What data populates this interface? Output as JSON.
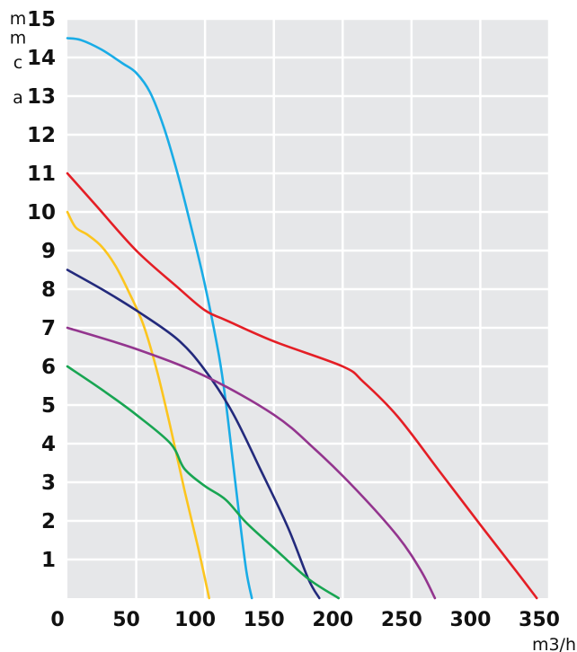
{
  "chart_data": {
    "type": "line",
    "title": "",
    "xlabel": "m3/h",
    "ylabel_letters": [
      "m",
      "m",
      "c",
      "a"
    ],
    "xlim": [
      0,
      350
    ],
    "ylim": [
      0,
      15
    ],
    "x_ticks": [
      0,
      50,
      100,
      150,
      200,
      250,
      300,
      350
    ],
    "y_ticks": [
      1,
      2,
      3,
      4,
      5,
      6,
      7,
      8,
      9,
      10,
      11,
      12,
      13,
      14,
      15
    ],
    "grid": true,
    "colors": {
      "plot_bg": "#e6e7e9",
      "grid": "#ffffff"
    },
    "series": [
      {
        "color": "#19ace6",
        "points": [
          [
            0,
            14.5
          ],
          [
            10,
            14.45
          ],
          [
            25,
            14.2
          ],
          [
            40,
            13.85
          ],
          [
            50,
            13.6
          ],
          [
            60,
            13.1
          ],
          [
            70,
            12.2
          ],
          [
            80,
            11.0
          ],
          [
            90,
            9.6
          ],
          [
            100,
            8.1
          ],
          [
            110,
            6.3
          ],
          [
            115,
            5.1
          ],
          [
            120,
            3.6
          ],
          [
            125,
            2.1
          ],
          [
            130,
            0.7
          ],
          [
            134,
            0
          ]
        ]
      },
      {
        "color": "#e41e25",
        "points": [
          [
            0,
            11
          ],
          [
            20,
            10.2
          ],
          [
            50,
            9.0
          ],
          [
            80,
            8.05
          ],
          [
            100,
            7.45
          ],
          [
            115,
            7.2
          ],
          [
            150,
            6.65
          ],
          [
            200,
            6.0
          ],
          [
            215,
            5.6
          ],
          [
            240,
            4.7
          ],
          [
            270,
            3.3
          ],
          [
            300,
            1.9
          ],
          [
            325,
            0.75
          ],
          [
            341,
            0
          ]
        ]
      },
      {
        "color": "#fcc51e",
        "points": [
          [
            0,
            10
          ],
          [
            6,
            9.6
          ],
          [
            15,
            9.4
          ],
          [
            25,
            9.1
          ],
          [
            35,
            8.6
          ],
          [
            45,
            7.9
          ],
          [
            55,
            7.1
          ],
          [
            65,
            5.9
          ],
          [
            75,
            4.4
          ],
          [
            85,
            2.8
          ],
          [
            95,
            1.3
          ],
          [
            103,
            0
          ]
        ]
      },
      {
        "color": "#232a7c",
        "points": [
          [
            0,
            8.5
          ],
          [
            25,
            8.0
          ],
          [
            50,
            7.45
          ],
          [
            80,
            6.7
          ],
          [
            100,
            5.9
          ],
          [
            120,
            4.8
          ],
          [
            140,
            3.35
          ],
          [
            160,
            1.85
          ],
          [
            175,
            0.5
          ],
          [
            183,
            0
          ]
        ]
      },
      {
        "color": "#93358e",
        "points": [
          [
            0,
            7
          ],
          [
            50,
            6.45
          ],
          [
            100,
            5.75
          ],
          [
            150,
            4.75
          ],
          [
            180,
            3.85
          ],
          [
            210,
            2.8
          ],
          [
            240,
            1.6
          ],
          [
            257,
            0.7
          ],
          [
            267,
            0
          ]
        ]
      },
      {
        "color": "#18a552",
        "points": [
          [
            0,
            6
          ],
          [
            25,
            5.4
          ],
          [
            50,
            4.75
          ],
          [
            75,
            4.0
          ],
          [
            85,
            3.35
          ],
          [
            100,
            2.9
          ],
          [
            115,
            2.55
          ],
          [
            130,
            1.95
          ],
          [
            150,
            1.3
          ],
          [
            175,
            0.5
          ],
          [
            197,
            0
          ]
        ]
      }
    ]
  }
}
